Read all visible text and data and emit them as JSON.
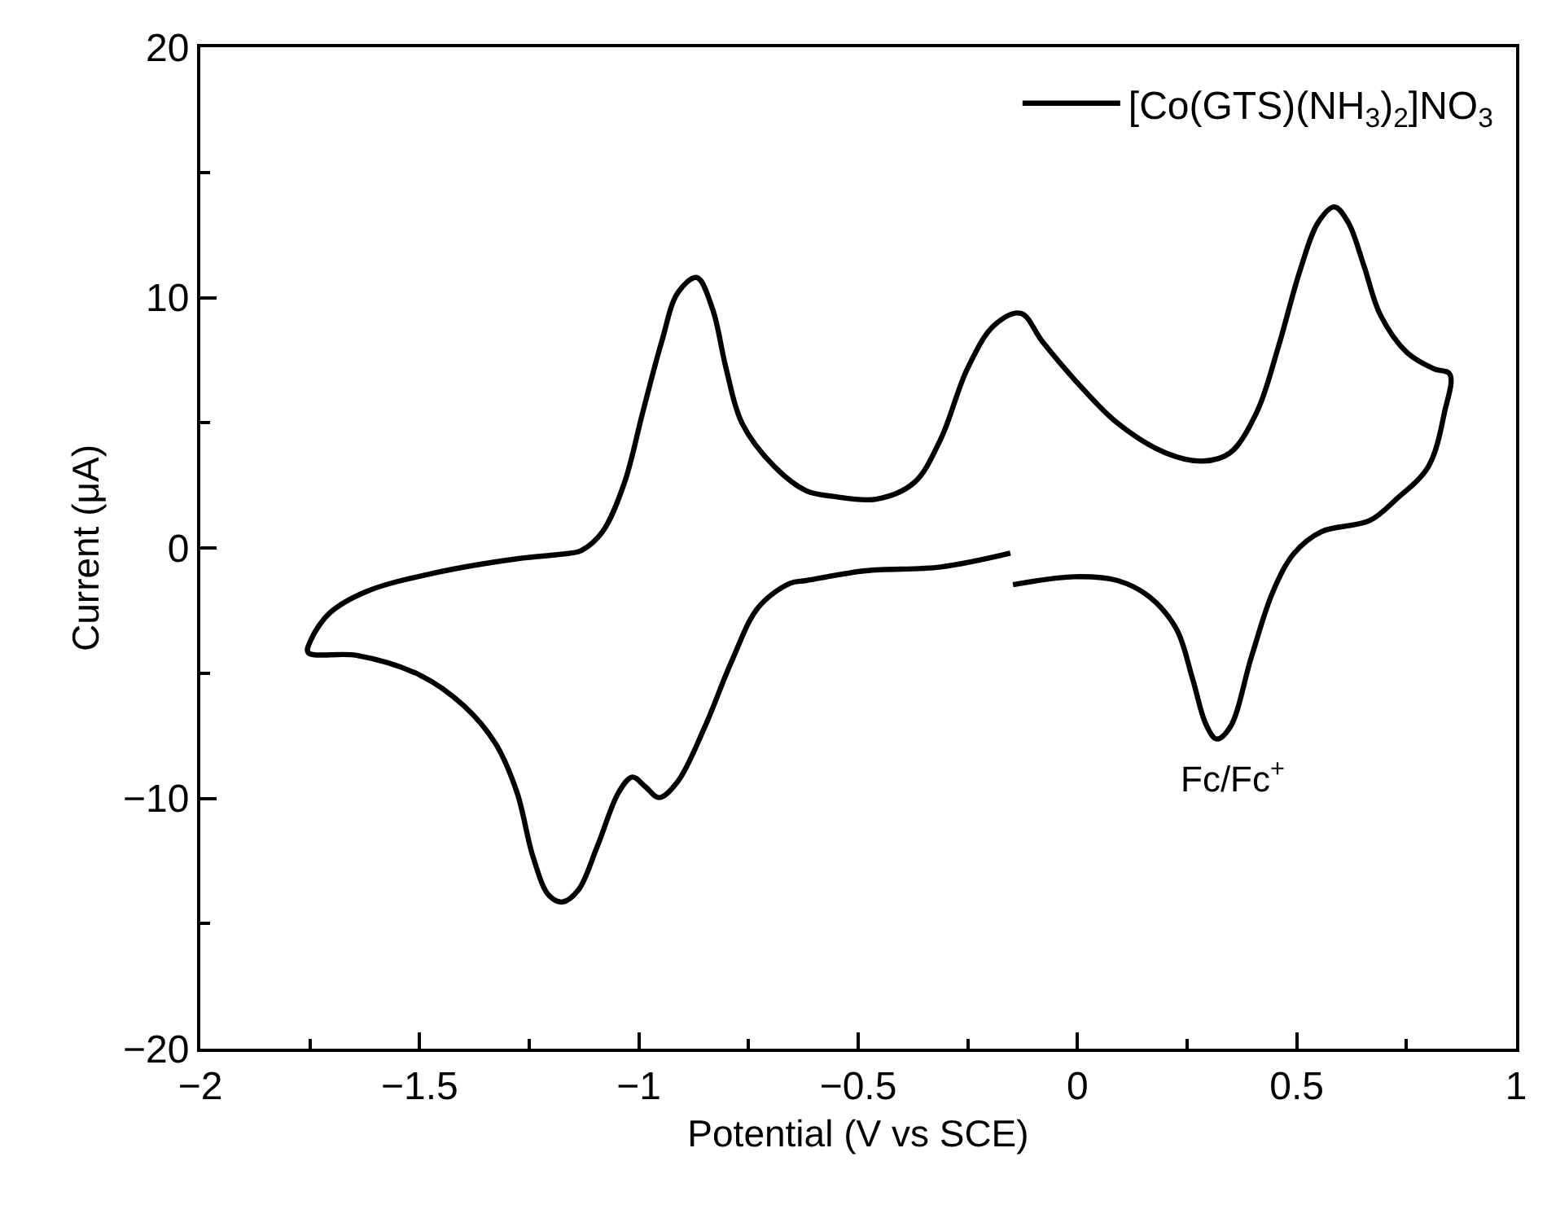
{
  "chart_data": {
    "type": "line",
    "xlabel": "Potential (V vs SCE)",
    "ylabel": "Current (μA)",
    "xlim": [
      -2,
      1
    ],
    "ylim": [
      -20,
      20
    ],
    "xticks": [
      -2,
      {
        "value": -1.75,
        "label": null
      },
      -1.5,
      {
        "value": -1.25,
        "label": null
      },
      -1,
      {
        "value": -0.75,
        "label": null
      },
      -0.5,
      {
        "value": -0.25,
        "label": null
      },
      0,
      {
        "value": 0.25,
        "label": null
      },
      0.5,
      {
        "value": 0.75,
        "label": null
      },
      1
    ],
    "yticks": [
      -20,
      {
        "value": -15,
        "label": null
      },
      -10,
      {
        "value": -5,
        "label": null
      },
      0,
      {
        "value": 5,
        "label": null
      },
      10,
      {
        "value": 15,
        "label": null
      },
      20
    ],
    "legend": "top right",
    "marker": "none",
    "line_style": "solid",
    "series": [
      {
        "name": "[Co(GTS)(NH$_{3}$)$_{2}$]NO$_{3}$",
        "color": "#000000",
        "x": [
          -0.147,
          -0.007,
          0.091,
          0.164,
          0.226,
          0.262,
          0.293,
          0.317,
          0.348,
          0.397,
          0.446,
          0.494,
          0.556,
          0.666,
          0.727,
          0.8,
          0.837,
          0.849,
          0.812,
          0.751,
          0.69,
          0.653,
          0.617,
          0.586,
          0.549,
          0.507,
          0.458,
          0.409,
          0.348,
          0.287,
          0.201,
          0.091,
          -0.007,
          -0.08,
          -0.129,
          -0.19,
          -0.251,
          -0.312,
          -0.373,
          -0.459,
          -0.557,
          -0.618,
          -0.691,
          -0.765,
          -0.801,
          -0.832,
          -0.868,
          -0.911,
          -0.948,
          -0.991,
          -1.033,
          -1.083,
          -1.131,
          -1.156,
          -1.277,
          -1.461,
          -1.62,
          -1.705,
          -1.748,
          -1.754,
          -1.644,
          -1.498,
          -1.4,
          -1.327,
          -1.278,
          -1.241,
          -1.205,
          -1.174,
          -1.138,
          -1.095,
          -1.046,
          -1.015,
          -0.985,
          -0.954,
          -0.911,
          -0.85,
          -0.789,
          -0.728,
          -0.655,
          -0.618,
          -0.483,
          -0.312,
          -0.153
        ],
        "values": [
          -1.47,
          -1.15,
          -1.3,
          -1.95,
          -3.25,
          -5.2,
          -7.05,
          -7.63,
          -7.16,
          -4.33,
          -1.73,
          -0.21,
          0.65,
          1.09,
          1.95,
          3.25,
          5.43,
          6.94,
          7.16,
          7.81,
          9.33,
          11.28,
          13.01,
          13.62,
          13.01,
          11.06,
          8.03,
          5.43,
          3.8,
          3.47,
          3.8,
          4.99,
          6.73,
          8.24,
          9.37,
          8.89,
          7.16,
          4.34,
          2.6,
          1.95,
          2.06,
          2.28,
          3.25,
          4.99,
          7.16,
          9.54,
          10.8,
          10.2,
          8.24,
          5.43,
          2.6,
          0.65,
          -0.1,
          -0.21,
          -0.43,
          -0.98,
          -1.73,
          -2.6,
          -3.68,
          -4.18,
          -4.29,
          -5.09,
          -6.29,
          -7.81,
          -9.76,
          -12.36,
          -13.88,
          -14.14,
          -13.66,
          -11.93,
          -9.76,
          -9.15,
          -9.54,
          -9.97,
          -9.32,
          -7.16,
          -4.55,
          -2.38,
          -1.41,
          -1.3,
          -0.91,
          -0.76,
          -0.21
        ]
      }
    ],
    "annotations": [
      {
        "text": "Fc/Fc$^{+}$",
        "x": 0.317,
        "y": -7.63
      }
    ]
  }
}
